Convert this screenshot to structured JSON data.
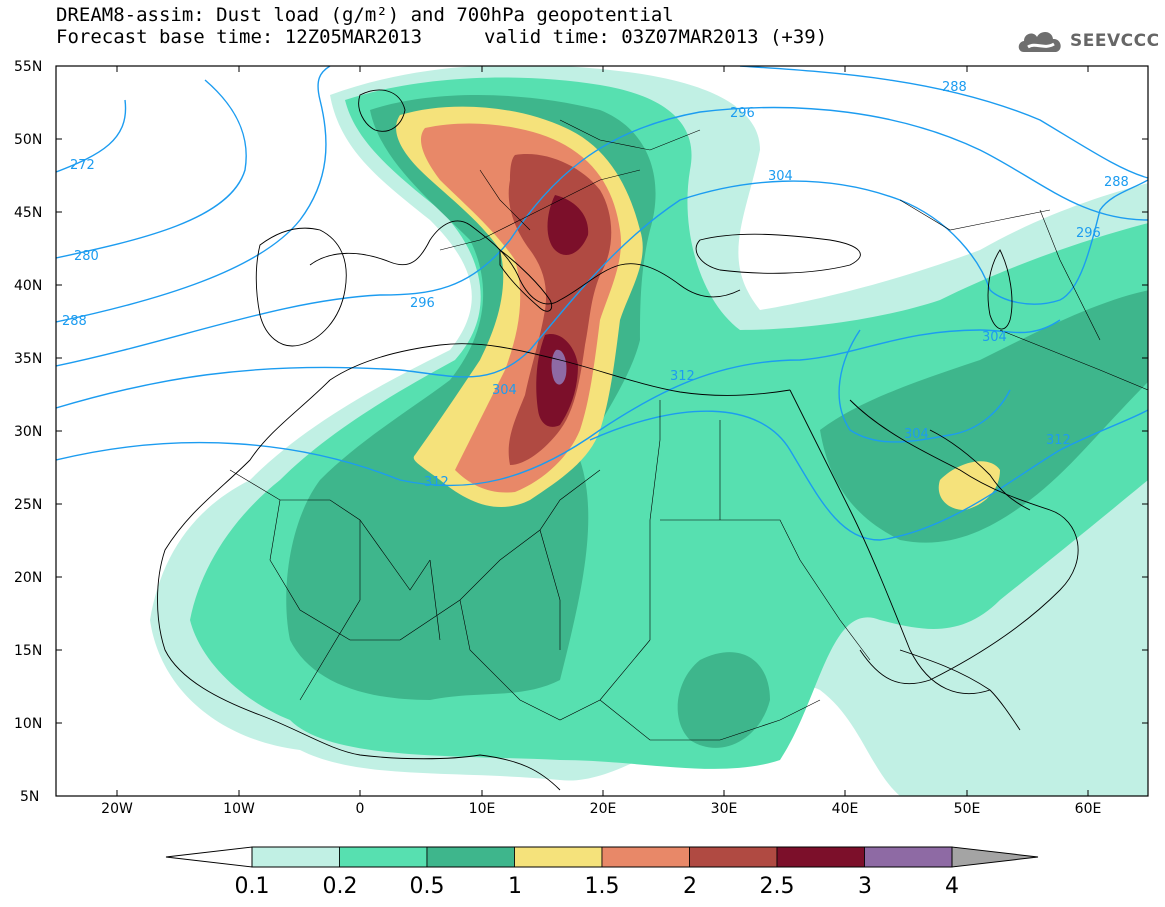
{
  "header": {
    "line1": "DREAM8-assim: Dust load (g/m²) and 700hPa geopotential",
    "line2": "Forecast base time: 12Z05MAR2013",
    "valid": "valid time: 03Z07MAR2013 (+39)",
    "logo": "SEEVCCC"
  },
  "map": {
    "lat_labels": [
      "55N",
      "50N",
      "45N",
      "40N",
      "35N",
      "30N",
      "25N",
      "20N",
      "15N",
      "10N",
      "5N"
    ],
    "lon_labels": [
      "20W",
      "10W",
      "0",
      "10E",
      "20E",
      "30E",
      "40E",
      "50E",
      "60E"
    ],
    "contour_labels": [
      "272",
      "280",
      "288",
      "288",
      "288",
      "296",
      "296",
      "296",
      "304",
      "304",
      "304",
      "304",
      "312",
      "312",
      "312"
    ]
  },
  "colorbar": {
    "labels": [
      "0.1",
      "0.2",
      "0.5",
      "1",
      "1.5",
      "2",
      "2.5",
      "3",
      "4"
    ],
    "colors": [
      "#c1f0e4",
      "#57e0b0",
      "#3eb68c",
      "#f5e27b",
      "#e88868",
      "#b04a42",
      "#7c0f2a",
      "#8e6aa4"
    ],
    "under_color": "#ffffff",
    "over_color": "#a4a4a4"
  }
}
